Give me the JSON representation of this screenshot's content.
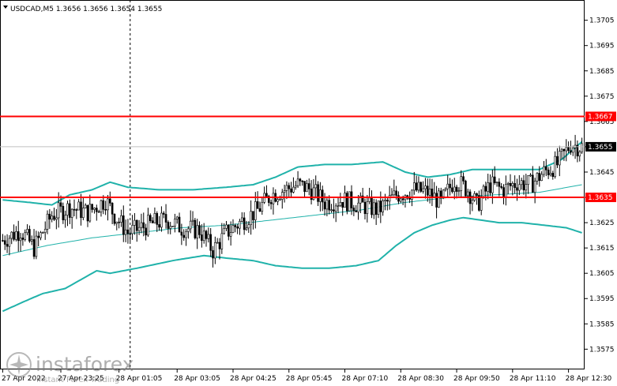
{
  "chart_data": {
    "type": "candlestick",
    "title": "USDCAD,M5  1.3656 1.3656 1.3654 1.3655",
    "symbol": "USDCAD",
    "timeframe": "M5",
    "ohlc_header": "1.3656 1.3656 1.3654 1.3655",
    "ylim": [
      1.3567,
      1.3713
    ],
    "y_ticks": [
      "1.3705",
      "1.3695",
      "1.3685",
      "1.3675",
      "1.3665",
      "1.3655",
      "1.3645",
      "1.3635",
      "1.3625",
      "1.3615",
      "1.3605",
      "1.3595",
      "1.3585",
      "1.3575"
    ],
    "y_tick_values": [
      1.3705,
      1.3695,
      1.3685,
      1.3675,
      1.3665,
      1.3655,
      1.3645,
      1.3635,
      1.3625,
      1.3615,
      1.3605,
      1.3595,
      1.3585,
      1.3575
    ],
    "x_ticks": [
      "27 Apr 2022",
      "27 Apr 23:25",
      "28 Apr 01:05",
      "28 Apr 03:05",
      "28 Apr 04:25",
      "28 Apr 05:45",
      "28 Apr 07:10",
      "28 Apr 08:30",
      "28 Apr 09:50",
      "28 Apr 11:10",
      "28 Apr 12:30"
    ],
    "x_tick_index": [
      0,
      26,
      52,
      78,
      103,
      128,
      153,
      178,
      203,
      228,
      253
    ],
    "bar_count": 260,
    "close_path": [
      [
        0,
        1.3618
      ],
      [
        8,
        1.3622
      ],
      [
        14,
        1.3615
      ],
      [
        22,
        1.3628
      ],
      [
        30,
        1.3631
      ],
      [
        38,
        1.3629
      ],
      [
        46,
        1.3634
      ],
      [
        50,
        1.3628
      ],
      [
        56,
        1.3621
      ],
      [
        62,
        1.3623
      ],
      [
        68,
        1.3625
      ],
      [
        74,
        1.3626
      ],
      [
        80,
        1.3623
      ],
      [
        88,
        1.3622
      ],
      [
        94,
        1.3614
      ],
      [
        100,
        1.3621
      ],
      [
        106,
        1.3625
      ],
      [
        114,
        1.363
      ],
      [
        120,
        1.3636
      ],
      [
        126,
        1.3638
      ],
      [
        132,
        1.364
      ],
      [
        138,
        1.3638
      ],
      [
        144,
        1.3633
      ],
      [
        152,
        1.3634
      ],
      [
        160,
        1.3632
      ],
      [
        168,
        1.363
      ],
      [
        176,
        1.3636
      ],
      [
        184,
        1.3638
      ],
      [
        190,
        1.3637
      ],
      [
        196,
        1.3633
      ],
      [
        202,
        1.3642
      ],
      [
        208,
        1.3638
      ],
      [
        212,
        1.3632
      ],
      [
        218,
        1.364
      ],
      [
        224,
        1.3638
      ],
      [
        230,
        1.3641
      ],
      [
        236,
        1.364
      ],
      [
        242,
        1.3645
      ],
      [
        248,
        1.3648
      ],
      [
        254,
        1.3656
      ],
      [
        258,
        1.3655
      ]
    ],
    "bollinger_upper": [
      [
        0,
        1.3634
      ],
      [
        12,
        1.3633
      ],
      [
        22,
        1.3632
      ],
      [
        30,
        1.3636
      ],
      [
        40,
        1.3638
      ],
      [
        48,
        1.3641
      ],
      [
        56,
        1.3639
      ],
      [
        70,
        1.3638
      ],
      [
        85,
        1.3638
      ],
      [
        100,
        1.3639
      ],
      [
        112,
        1.364
      ],
      [
        122,
        1.3643
      ],
      [
        132,
        1.3647
      ],
      [
        144,
        1.3648
      ],
      [
        156,
        1.3648
      ],
      [
        170,
        1.3649
      ],
      [
        180,
        1.3645
      ],
      [
        190,
        1.3643
      ],
      [
        200,
        1.3644
      ],
      [
        210,
        1.3646
      ],
      [
        220,
        1.3646
      ],
      [
        230,
        1.3646
      ],
      [
        240,
        1.3646
      ],
      [
        250,
        1.365
      ],
      [
        259,
        1.3657
      ]
    ],
    "bollinger_middle": [
      [
        0,
        1.3612
      ],
      [
        20,
        1.3616
      ],
      [
        40,
        1.3619
      ],
      [
        60,
        1.3621
      ],
      [
        80,
        1.3623
      ],
      [
        100,
        1.3624
      ],
      [
        120,
        1.3626
      ],
      [
        140,
        1.3628
      ],
      [
        160,
        1.363
      ],
      [
        180,
        1.3633
      ],
      [
        200,
        1.3635
      ],
      [
        220,
        1.3636
      ],
      [
        240,
        1.3637
      ],
      [
        259,
        1.364
      ]
    ],
    "bollinger_lower": [
      [
        0,
        1.359
      ],
      [
        10,
        1.3594
      ],
      [
        18,
        1.3597
      ],
      [
        28,
        1.3599
      ],
      [
        36,
        1.3603
      ],
      [
        42,
        1.3606
      ],
      [
        48,
        1.3605
      ],
      [
        60,
        1.3607
      ],
      [
        76,
        1.361
      ],
      [
        90,
        1.3612
      ],
      [
        100,
        1.3611
      ],
      [
        112,
        1.361
      ],
      [
        122,
        1.3608
      ],
      [
        134,
        1.3607
      ],
      [
        146,
        1.3607
      ],
      [
        158,
        1.3608
      ],
      [
        168,
        1.361
      ],
      [
        176,
        1.3616
      ],
      [
        184,
        1.3621
      ],
      [
        192,
        1.3624
      ],
      [
        200,
        1.3626
      ],
      [
        206,
        1.3627
      ],
      [
        214,
        1.3626
      ],
      [
        222,
        1.3625
      ],
      [
        232,
        1.3625
      ],
      [
        242,
        1.3624
      ],
      [
        252,
        1.3623
      ],
      [
        259,
        1.3621
      ]
    ],
    "levels": [
      {
        "price": 1.3667,
        "label": "1.3667",
        "color": "#ff0000"
      },
      {
        "price": 1.3635,
        "label": "1.3635",
        "color": "#ff0000"
      }
    ],
    "current_price": {
      "price": 1.3655,
      "label": "1.3655"
    },
    "vertical_marker_index": 57,
    "colors": {
      "bollinger": "#20b2aa",
      "candle": "#000000",
      "level": "#ff0000",
      "grid": "none",
      "background": "#ffffff"
    },
    "grid": false
  },
  "watermark": {
    "brand": "instaforex",
    "tagline": "Instant Forex Trading"
  }
}
